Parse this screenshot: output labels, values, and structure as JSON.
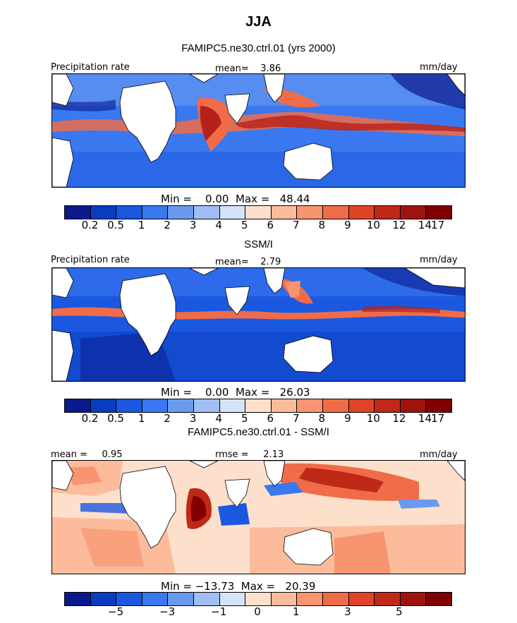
{
  "figure": {
    "season": "JJA",
    "top_title": "FAMIPC5.ne30.ctrl.01 (yrs 2000)",
    "mid_title": "SSM/I",
    "bottom_title": "FAMIPC5.ne30.ctrl.01 - SSM/I"
  },
  "panels": [
    {
      "left_label": "Precipitation rate",
      "center_label": "mean=    3.86",
      "right_label": "mm/day",
      "minmax": "Min =    0.00  Max =   48.44",
      "ticks": [
        "0.2",
        "0.5",
        "1",
        "2",
        "3",
        "4",
        "5",
        "6",
        "7",
        "8",
        "9",
        "10",
        "12",
        "14",
        "17"
      ]
    },
    {
      "left_label": "Precipitation rate",
      "center_label": "mean=    2.79",
      "right_label": "mm/day",
      "minmax": "Min =    0.00  Max =   26.03",
      "ticks": [
        "0.2",
        "0.5",
        "1",
        "2",
        "3",
        "4",
        "5",
        "6",
        "7",
        "8",
        "9",
        "10",
        "12",
        "14",
        "17"
      ]
    },
    {
      "left_label": "mean =     0.95",
      "center_label": "rmse =     2.13",
      "right_label": "mm/day",
      "minmax": "Min = −13.73  Max =   20.39",
      "ticks": [
        "−5",
        "−3",
        "−1",
        "0",
        "1",
        "3",
        "5"
      ]
    }
  ],
  "colorbar_colors": [
    "#0a1a8c",
    "#0a3cc0",
    "#1a58e0",
    "#3a78f0",
    "#6a9af0",
    "#a0bef2",
    "#d4e4f8",
    "#fde0cc",
    "#fcbc9c",
    "#f89470",
    "#f06c48",
    "#e04428",
    "#c02818",
    "#a01410",
    "#800000"
  ],
  "map_colors": {
    "land": "#ffffff",
    "land_outline": "#000000",
    "positive_strong": "#b8201a",
    "positive_mid": "#f06c48",
    "positive_weak": "#fcbc9c",
    "negative_strong": "#0a3cc0",
    "negative_mid": "#3a78f0",
    "negative_weak": "#a0bef2"
  }
}
